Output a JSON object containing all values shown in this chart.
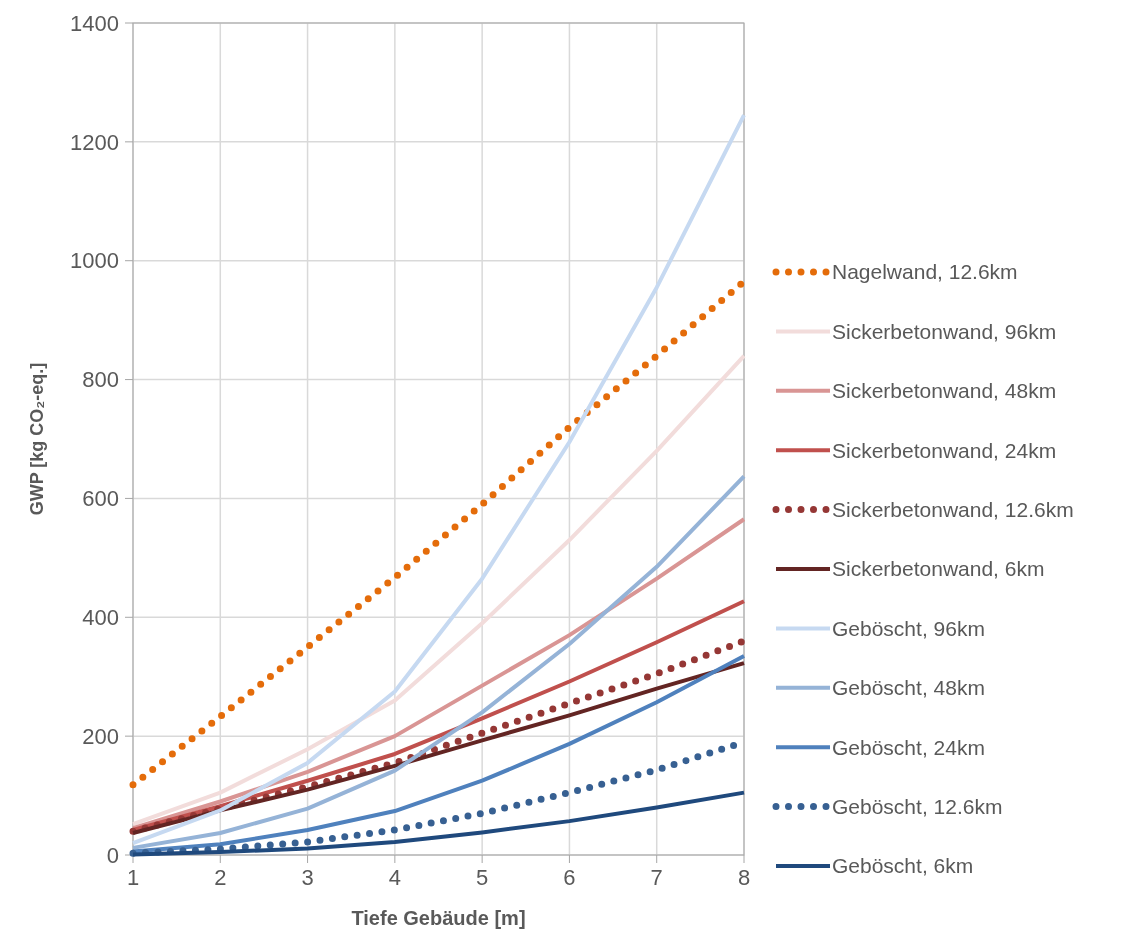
{
  "chart_data": {
    "type": "line",
    "xlabel": "Tiefe Gebäude [m]",
    "ylabel": "GWP [kg CO₂-eq.]",
    "x": [
      1,
      2,
      3,
      4,
      5,
      6,
      7,
      8
    ],
    "xlim": [
      1,
      8
    ],
    "xticks": [
      1,
      2,
      3,
      4,
      5,
      6,
      7,
      8
    ],
    "ylim": [
      0,
      1400
    ],
    "yticks": [
      0,
      200,
      400,
      600,
      800,
      1000,
      1200,
      1400
    ],
    "grid": true,
    "legend": "right",
    "series": [
      {
        "name": "Nagelwand, 12.6km",
        "color": "#e46c0a",
        "line_style": "dotted",
        "values": [
          118,
          233,
          350,
          467,
          590,
          720,
          840,
          965
        ]
      },
      {
        "name": "Sickerbetonwand, 96km",
        "color": "#f2dcdb",
        "line_style": "solid",
        "values": [
          52,
          105,
          178,
          260,
          390,
          530,
          680,
          840
        ]
      },
      {
        "name": "Sickerbetonwand, 48km",
        "color": "#d99594",
        "line_style": "solid",
        "values": [
          45,
          90,
          140,
          200,
          285,
          370,
          465,
          565
        ]
      },
      {
        "name": "Sickerbetonwand, 24km",
        "color": "#c0504d",
        "line_style": "solid",
        "values": [
          42,
          82,
          125,
          170,
          230,
          292,
          358,
          427
        ]
      },
      {
        "name": "Sickerbetonwand, 12.6km",
        "color": "#953735",
        "line_style": "dotted",
        "values": [
          40,
          78,
          115,
          155,
          205,
          255,
          305,
          360
        ]
      },
      {
        "name": "Sickerbetonwand, 6km",
        "color": "#632523",
        "line_style": "solid",
        "values": [
          37,
          75,
          110,
          150,
          193,
          235,
          280,
          323
        ]
      },
      {
        "name": "Geböscht, 96km",
        "color": "#c6d9f1",
        "line_style": "solid",
        "values": [
          20,
          75,
          155,
          275,
          465,
          695,
          955,
          1245
        ]
      },
      {
        "name": "Geböscht, 48km",
        "color": "#95b3d7",
        "line_style": "solid",
        "values": [
          12,
          37,
          78,
          142,
          240,
          355,
          485,
          637
        ]
      },
      {
        "name": "Geböscht, 24km",
        "color": "#4f81bd",
        "line_style": "solid",
        "values": [
          6,
          18,
          42,
          74,
          125,
          187,
          257,
          335
        ]
      },
      {
        "name": "Geböscht, 12.6km",
        "color": "#376092",
        "line_style": "dotted",
        "values": [
          3,
          10,
          22,
          42,
          70,
          105,
          143,
          190
        ]
      },
      {
        "name": "Geböscht, 6km",
        "color": "#1f497d",
        "line_style": "solid",
        "values": [
          1,
          5,
          11,
          22,
          38,
          57,
          80,
          105
        ]
      }
    ]
  }
}
